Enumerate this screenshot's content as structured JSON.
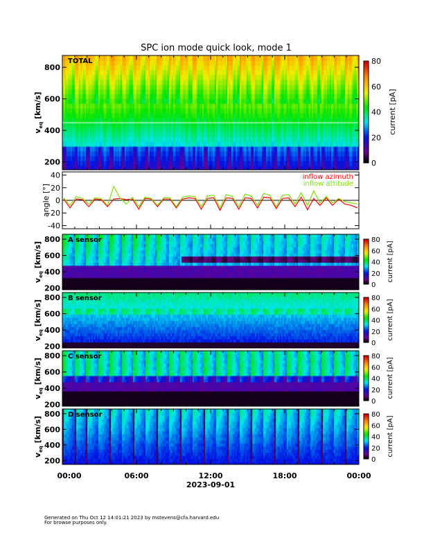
{
  "chart_data": {
    "type": "heatmap",
    "title": "SPC ion mode quick look, mode 1",
    "x_ticks": [
      "00:00",
      "06:00",
      "12:00",
      "18:00",
      "00:00"
    ],
    "x_label": "2023-09-01",
    "x_range_hours": [
      0,
      24
    ],
    "panels": [
      {
        "name": "total",
        "label": "TOTAL",
        "ylabel": "v",
        "ylabel_sub": "eq",
        "ylabel_unit": "[km/s]",
        "ylim": [
          150,
          875
        ],
        "yticks": [
          200,
          400,
          600,
          800
        ],
        "colorbar": {
          "label": "current [pA]",
          "range": [
            0,
            80
          ],
          "ticks": [
            0,
            20,
            40,
            60,
            80
          ]
        }
      },
      {
        "name": "a-sensor",
        "label": "A sensor",
        "ylabel": "v",
        "ylabel_sub": "eq",
        "ylabel_unit": "[km/s]",
        "ylim": [
          180,
          860
        ],
        "yticks": [
          200,
          400,
          600,
          800
        ],
        "colorbar": {
          "label": "current [pA]",
          "range": [
            0,
            80
          ],
          "ticks": [
            0,
            20,
            40,
            60,
            80
          ]
        }
      },
      {
        "name": "b-sensor",
        "label": "B sensor",
        "ylabel": "v",
        "ylabel_sub": "eq",
        "ylabel_unit": "[km/s]",
        "ylim": [
          180,
          860
        ],
        "yticks": [
          200,
          400,
          600,
          800
        ],
        "colorbar": {
          "label": "current [pA]",
          "range": [
            0,
            80
          ],
          "ticks": [
            0,
            20,
            40,
            60,
            80
          ]
        }
      },
      {
        "name": "c-sensor",
        "label": "C sensor",
        "ylabel": "v",
        "ylabel_sub": "eq",
        "ylabel_unit": "[km/s]",
        "ylim": [
          180,
          860
        ],
        "yticks": [
          200,
          400,
          600,
          800
        ],
        "colorbar": {
          "label": "current [pA]",
          "range": [
            0,
            80
          ],
          "ticks": [
            0,
            20,
            40,
            60,
            80
          ]
        }
      },
      {
        "name": "d-sensor",
        "label": "D sensor",
        "ylabel": "v",
        "ylabel_sub": "eq",
        "ylabel_unit": "[km/s]",
        "ylim": [
          150,
          860
        ],
        "yticks": [
          200,
          400,
          600,
          800
        ],
        "colorbar": {
          "label": "current [pA]",
          "range": [
            0,
            80
          ],
          "ticks": [
            0,
            20,
            40,
            60,
            80
          ]
        }
      }
    ],
    "angle_panel": {
      "ylabel": "angle [°]",
      "ylim": [
        -45,
        45
      ],
      "yticks": [
        -40,
        -20,
        0,
        20,
        40
      ],
      "series": [
        {
          "name": "inflow azimuth",
          "color": "#ff0000",
          "values": [
            2,
            -12,
            2,
            1,
            -10,
            2,
            1,
            -10,
            2,
            3,
            1,
            2,
            -14,
            3,
            2,
            -10,
            2,
            2,
            -12,
            2,
            4,
            3,
            -14,
            3,
            4,
            -16,
            4,
            3,
            -14,
            4,
            3,
            -12,
            5,
            4,
            -13,
            3,
            4,
            -10,
            5,
            -15,
            3,
            -8,
            4,
            -8,
            2,
            -6,
            -8,
            -12
          ]
        },
        {
          "name": "inflow attitude",
          "color": "#80e000",
          "values": [
            4,
            -8,
            6,
            3,
            -6,
            4,
            3,
            -8,
            22,
            4,
            -6,
            5,
            -10,
            5,
            3,
            -8,
            4,
            4,
            -10,
            5,
            7,
            6,
            -10,
            7,
            8,
            -12,
            9,
            6,
            -10,
            10,
            7,
            -8,
            11,
            8,
            -10,
            8,
            9,
            -6,
            12,
            -8,
            15,
            -4,
            6,
            -4,
            3,
            -2,
            -4,
            -6
          ]
        }
      ]
    }
  },
  "footer": {
    "line1": "Generated on Thu Oct 12 14:01:21 2023 by mstevens@cfa.harvard.edu",
    "line2": "For browse purposes only."
  }
}
